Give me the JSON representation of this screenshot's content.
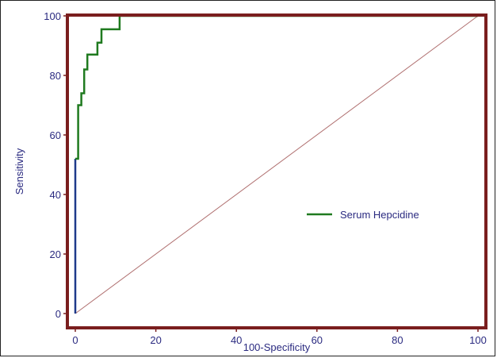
{
  "chart_data": {
    "type": "line",
    "title": "",
    "xlabel": "100-Specificity",
    "ylabel": "Sensitivity",
    "xlim": [
      0,
      100
    ],
    "ylim": [
      0,
      100
    ],
    "x_ticks": [
      0,
      20,
      40,
      60,
      80,
      100
    ],
    "y_ticks": [
      0,
      20,
      40,
      60,
      80,
      100
    ],
    "x_tick_labels": [
      "0",
      "20",
      "40",
      "60",
      "80",
      "100"
    ],
    "y_tick_labels": [
      "0",
      "20",
      "40",
      "60",
      "80",
      "100"
    ],
    "grid": false,
    "legend_position": "center-right",
    "series": [
      {
        "name": "Serum Hepcidine",
        "step": true,
        "x": [
          0,
          0,
          0.7,
          0.7,
          1.5,
          1.5,
          2.2,
          2.2,
          3,
          3,
          5.5,
          5.5,
          6.5,
          6.5,
          11,
          11,
          100
        ],
        "y": [
          0,
          52,
          52,
          70,
          70,
          74,
          74,
          82,
          82,
          87,
          87,
          91,
          91,
          95.5,
          95.5,
          100,
          100
        ]
      }
    ],
    "reference_line": {
      "x": [
        0,
        100
      ],
      "y": [
        0,
        100
      ]
    },
    "colors": {
      "series": "#1f7a1f",
      "reference": "#b07070",
      "axis_frame": "#7a1e1e",
      "vertical_segment": "#1e3a8a",
      "text": "#2a2a80"
    }
  }
}
